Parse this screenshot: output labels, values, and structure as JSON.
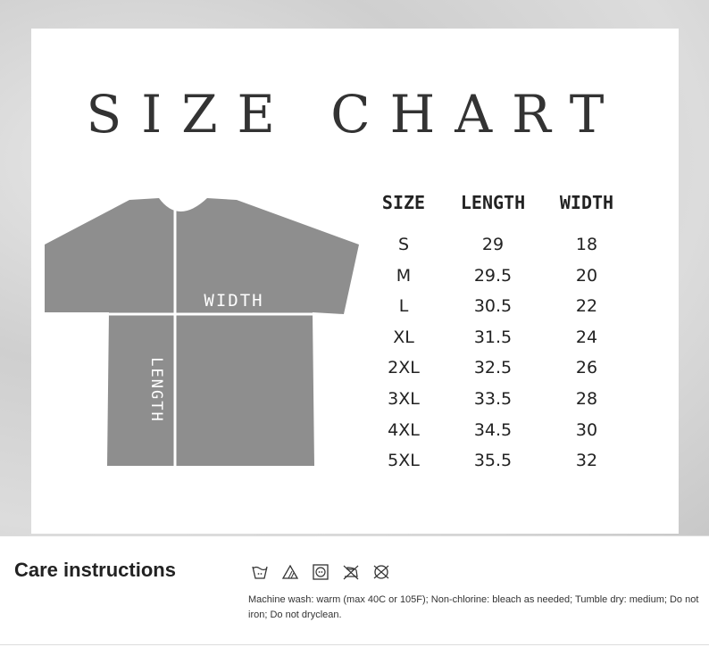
{
  "title": "SIZE CHART",
  "diagram": {
    "width_label": "WIDTH",
    "length_label": "LENGTH",
    "shirt_color": "#8e8e8e"
  },
  "table": {
    "headers": [
      "SIZE",
      "LENGTH",
      "WIDTH"
    ],
    "rows": [
      [
        "S",
        "29",
        "18"
      ],
      [
        "M",
        "29.5",
        "20"
      ],
      [
        "L",
        "30.5",
        "22"
      ],
      [
        "XL",
        "31.5",
        "24"
      ],
      [
        "2XL",
        "32.5",
        "26"
      ],
      [
        "3XL",
        "33.5",
        "28"
      ],
      [
        "4XL",
        "34.5",
        "30"
      ],
      [
        "5XL",
        "35.5",
        "32"
      ]
    ]
  },
  "care": {
    "heading": "Care instructions",
    "icons": [
      "wash-warm-icon",
      "non-chlorine-bleach-icon",
      "tumble-dry-medium-icon",
      "do-not-iron-icon",
      "do-not-dryclean-icon"
    ],
    "text": "Machine wash: warm (max 40C or 105F); Non-chlorine: bleach as needed; Tumble dry: medium; Do not iron; Do not dryclean."
  }
}
